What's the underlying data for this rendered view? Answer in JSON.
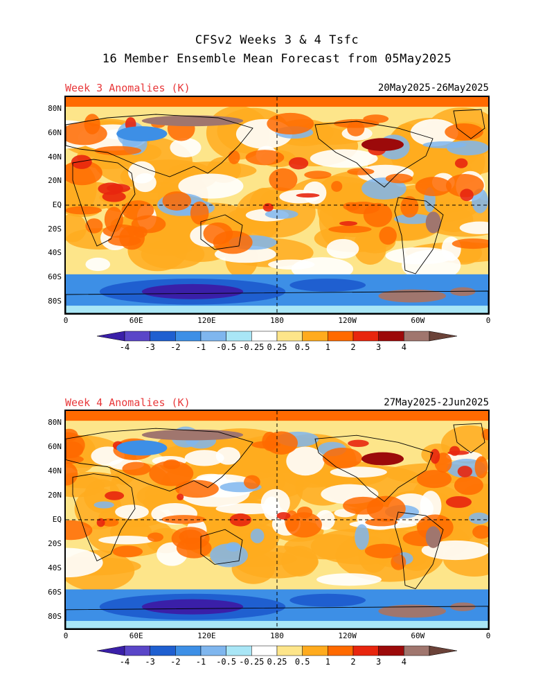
{
  "title": {
    "line1": "CFSv2 Weeks 3 & 4 Tsfc",
    "line2": "16 Member Ensemble Mean Forecast from 05May2025"
  },
  "panels": [
    {
      "heading": "Week 3 Anomalies (K)",
      "dates": "20May2025-26May2025"
    },
    {
      "heading": "Week 4 Anomalies (K)",
      "dates": "27May2025-2Jun2025"
    }
  ],
  "axes": {
    "lat_labels": [
      "80N",
      "60N",
      "40N",
      "20N",
      "EQ",
      "20S",
      "40S",
      "60S",
      "80S"
    ],
    "lat_values": [
      80,
      60,
      40,
      20,
      0,
      -20,
      -40,
      -60,
      -80
    ],
    "lon_labels": [
      "0",
      "60E",
      "120E",
      "180",
      "120W",
      "60W",
      "0"
    ],
    "lon_values": [
      0,
      60,
      120,
      180,
      240,
      300,
      360
    ]
  },
  "colorbar": {
    "labels": [
      "-4",
      "-3",
      "-2",
      "-1",
      "-0.5",
      "-0.25",
      "0.25",
      "0.5",
      "1",
      "2",
      "3",
      "4"
    ],
    "colors": [
      "#3a1fa8",
      "#5a46c8",
      "#1f5fd0",
      "#3d8fe6",
      "#7fb6ee",
      "#a9e6f6",
      "#ffffff",
      "#fde58a",
      "#ffab1e",
      "#ff6a00",
      "#e8260e",
      "#9c0a0a",
      "#a0766e",
      "#6b4238"
    ]
  },
  "colors": {
    "heading_red": "#e8383a",
    "warm_base": "#ffab1e",
    "cool_base": "#3d8fe6"
  }
}
